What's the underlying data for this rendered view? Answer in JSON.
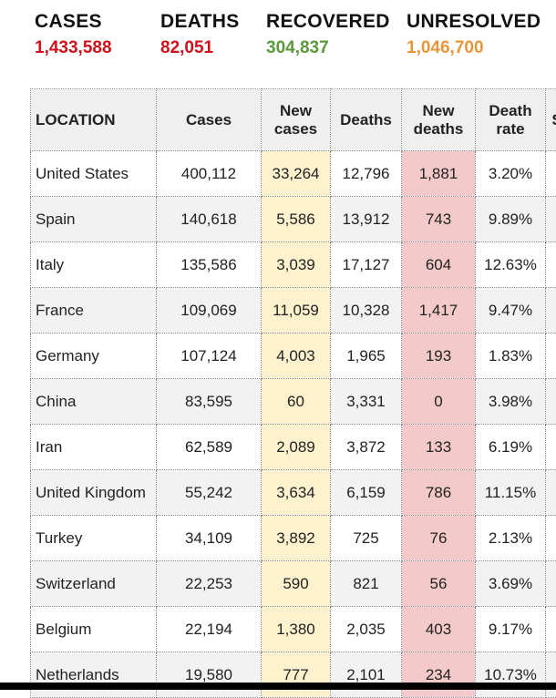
{
  "summary": [
    {
      "label": "CASES",
      "value": "1,433,588",
      "color": "#d0101a"
    },
    {
      "label": "DEATHS",
      "value": "82,051",
      "color": "#d0101a"
    },
    {
      "label": "RECOVERED",
      "value": "304,837",
      "color": "#5a9a3a"
    },
    {
      "label": "UNRESOLVED",
      "value": "1,046,700",
      "color": "#e8963a"
    }
  ],
  "table": {
    "headers": [
      "LOCATION",
      "Cases",
      "New cases",
      "Deaths",
      "New deaths",
      "Death rate",
      "S"
    ],
    "rows": [
      [
        "United States",
        "400,112",
        "33,264",
        "12,796",
        "1,881",
        "3.20%"
      ],
      [
        "Spain",
        "140,618",
        "5,586",
        "13,912",
        "743",
        "9.89%"
      ],
      [
        "Italy",
        "135,586",
        "3,039",
        "17,127",
        "604",
        "12.63%"
      ],
      [
        "France",
        "109,069",
        "11,059",
        "10,328",
        "1,417",
        "9.47%"
      ],
      [
        "Germany",
        "107,124",
        "4,003",
        "1,965",
        "193",
        "1.83%"
      ],
      [
        "China",
        "83,595",
        "60",
        "3,331",
        "0",
        "3.98%"
      ],
      [
        "Iran",
        "62,589",
        "2,089",
        "3,872",
        "133",
        "6.19%"
      ],
      [
        "United Kingdom",
        "55,242",
        "3,634",
        "6,159",
        "786",
        "11.15%"
      ],
      [
        "Turkey",
        "34,109",
        "3,892",
        "725",
        "76",
        "2.13%"
      ],
      [
        "Switzerland",
        "22,253",
        "590",
        "821",
        "56",
        "3.69%"
      ],
      [
        "Belgium",
        "22,194",
        "1,380",
        "2,035",
        "403",
        "9.17%"
      ],
      [
        "Netherlands",
        "19,580",
        "777",
        "2,101",
        "234",
        "10.73%"
      ]
    ]
  }
}
